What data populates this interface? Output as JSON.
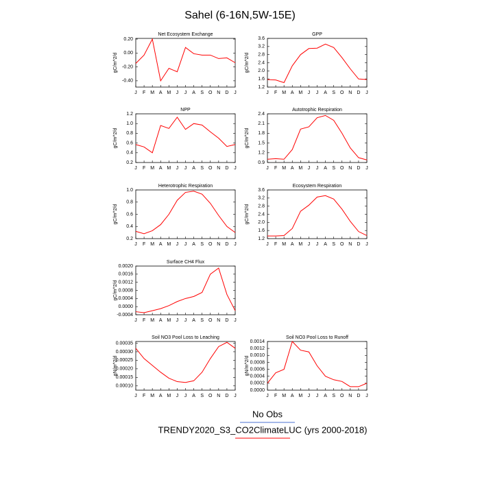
{
  "title": "Sahel (6-16N,5W-15E)",
  "legend": [
    {
      "name": "No Obs",
      "color": "#4a6fd0"
    },
    {
      "name": "TRENDY2020_S3_CO2ClimateLUC (yrs 2000-2018)",
      "color": "#ff0000"
    }
  ],
  "chart_data": [
    {
      "type": "line",
      "title": "Net Ecosystem Exchange",
      "y_label": "gC/m^2/d",
      "color": "#ff0000",
      "categories": [
        "J",
        "F",
        "M",
        "A",
        "M",
        "J",
        "J",
        "A",
        "S",
        "O",
        "N",
        "D",
        "J"
      ],
      "values": [
        -0.15,
        -0.03,
        0.2,
        -0.4,
        -0.22,
        -0.27,
        0.08,
        -0.01,
        -0.03,
        -0.03,
        -0.08,
        -0.07,
        -0.14
      ],
      "ylim": [
        -0.49,
        0.21
      ],
      "yticks": [
        {
          "value": -0.4,
          "label": "-0.40"
        },
        {
          "value": -0.2,
          "label": "-0.20"
        },
        {
          "value": 0,
          "label": "0.00"
        },
        {
          "value": 0.2,
          "label": "0.20"
        }
      ]
    },
    {
      "type": "line",
      "title": "GPP",
      "y_label": "gC/m^2/d",
      "color": "#ff0000",
      "categories": [
        "J",
        "F",
        "M",
        "A",
        "M",
        "J",
        "J",
        "A",
        "S",
        "O",
        "N",
        "D",
        "J"
      ],
      "values": [
        1.57,
        1.55,
        1.42,
        2.25,
        2.8,
        3.1,
        3.12,
        3.32,
        3.15,
        2.65,
        2.1,
        1.6,
        1.57
      ],
      "ylim": [
        1.2,
        3.6
      ],
      "yticks": [
        1.2,
        1.6,
        {
          "value": 2,
          "label": "2.0"
        },
        2.4,
        2.8,
        3.2,
        3.6
      ]
    },
    {
      "type": "line",
      "title": "NPP",
      "y_label": "gC/m^2/d",
      "color": "#ff0000",
      "categories": [
        "J",
        "F",
        "M",
        "A",
        "M",
        "J",
        "J",
        "A",
        "S",
        "O",
        "N",
        "D",
        "J"
      ],
      "values": [
        0.57,
        0.52,
        0.4,
        0.96,
        0.9,
        1.13,
        0.88,
        1.0,
        0.97,
        0.83,
        0.7,
        0.53,
        0.57
      ],
      "ylim": [
        0.2,
        1.2
      ],
      "yticks": [
        0.2,
        0.4,
        0.6,
        0.8,
        {
          "value": 1,
          "label": "1.0"
        },
        1.2
      ]
    },
    {
      "type": "line",
      "title": "Autotrophic Respiration",
      "y_label": "gC/m^2/d",
      "color": "#ff0000",
      "categories": [
        "J",
        "F",
        "M",
        "A",
        "M",
        "J",
        "J",
        "A",
        "S",
        "O",
        "N",
        "D",
        "J"
      ],
      "values": [
        1.0,
        1.02,
        1.0,
        1.3,
        1.93,
        2.0,
        2.28,
        2.35,
        2.2,
        1.8,
        1.35,
        1.05,
        0.98
      ],
      "ylim": [
        0.9,
        2.4
      ],
      "yticks": [
        0.9,
        1.2,
        1.5,
        1.8,
        2.1,
        2.4
      ]
    },
    {
      "type": "line",
      "title": "Heterotrophic Respiration",
      "y_label": "gC/m^2/d",
      "color": "#ff0000",
      "categories": [
        "J",
        "F",
        "M",
        "A",
        "M",
        "J",
        "J",
        "A",
        "S",
        "O",
        "N",
        "D",
        "J"
      ],
      "values": [
        0.32,
        0.28,
        0.33,
        0.43,
        0.6,
        0.83,
        0.96,
        0.98,
        0.93,
        0.78,
        0.58,
        0.4,
        0.3
      ],
      "ylim": [
        0.2,
        1.0
      ],
      "yticks": [
        0.2,
        0.4,
        0.6,
        0.8,
        {
          "value": 1,
          "label": "1.0"
        }
      ]
    },
    {
      "type": "line",
      "title": "Ecosystem Respiration",
      "y_label": "gC/m^2/d",
      "color": "#ff0000",
      "categories": [
        "J",
        "F",
        "M",
        "A",
        "M",
        "J",
        "J",
        "A",
        "S",
        "O",
        "N",
        "D",
        "J"
      ],
      "values": [
        1.33,
        1.33,
        1.35,
        1.7,
        2.55,
        2.85,
        3.25,
        3.32,
        3.15,
        2.65,
        2.05,
        1.55,
        1.35
      ],
      "ylim": [
        1.2,
        3.6
      ],
      "yticks": [
        1.2,
        1.6,
        {
          "value": 2,
          "label": "2.0"
        },
        2.4,
        2.8,
        3.2,
        3.6
      ]
    },
    {
      "type": "line",
      "title": "Surface CH4 Flux",
      "y_label": "gC/m^2/d",
      "color": "#ff0000",
      "categories": [
        "J",
        "F",
        "M",
        "A",
        "M",
        "J",
        "J",
        "A",
        "S",
        "O",
        "N",
        "D",
        "J"
      ],
      "values": [
        -0.00025,
        -0.0003,
        -0.0002,
        -0.0001,
        5e-05,
        0.00025,
        0.0004,
        0.0005,
        0.0007,
        0.0016,
        0.0019,
        0.0006,
        -0.0002
      ],
      "ylim": [
        -0.0004,
        0.002
      ],
      "yticks": [
        -0.0004,
        {
          "value": 0,
          "label": "0.0000"
        },
        0.0004,
        0.0008,
        0.0012,
        0.0016,
        {
          "value": 0.002,
          "label": "0.0020"
        }
      ]
    },
    {
      "type": "line",
      "title": "Soil NO3 Pool Loss to Leaching",
      "y_label": "gN/m^2/d",
      "color": "#ff0000",
      "categories": [
        "J",
        "F",
        "M",
        "A",
        "M",
        "J",
        "J",
        "A",
        "S",
        "O",
        "N",
        "D",
        "J"
      ],
      "values": [
        0.00032,
        0.00026,
        0.00022,
        0.00018,
        0.000145,
        0.000125,
        0.00012,
        0.00013,
        0.00018,
        0.00026,
        0.00033,
        0.000355,
        0.00032
      ],
      "ylim": [
        7.5e-05,
        0.00036
      ],
      "yticks": [
        {
          "value": 0.0001,
          "label": "0.00010"
        },
        0.00015,
        {
          "value": 0.0002,
          "label": "0.00020"
        },
        0.00025,
        {
          "value": 0.0003,
          "label": "0.00030"
        },
        0.00035
      ]
    },
    {
      "type": "line",
      "title": "Soil NO3 Pool Loss to Runoff",
      "y_label": "gN/m^2/d",
      "color": "#ff0000",
      "categories": [
        "J",
        "F",
        "M",
        "A",
        "M",
        "J",
        "J",
        "A",
        "S",
        "O",
        "N",
        "D",
        "J"
      ],
      "values": [
        0.0002,
        0.0005,
        0.0006,
        0.0014,
        0.00115,
        0.0011,
        0.0007,
        0.0004,
        0.0003,
        0.00025,
        0.0001,
        0.0001,
        0.0002
      ],
      "ylim": [
        0,
        0.0014
      ],
      "yticks": [
        {
          "value": 0,
          "label": "0.0000"
        },
        0.0002,
        0.0004,
        0.0006,
        0.0008,
        {
          "value": 0.001,
          "label": "0.0010"
        },
        0.0012,
        0.0014
      ]
    }
  ]
}
